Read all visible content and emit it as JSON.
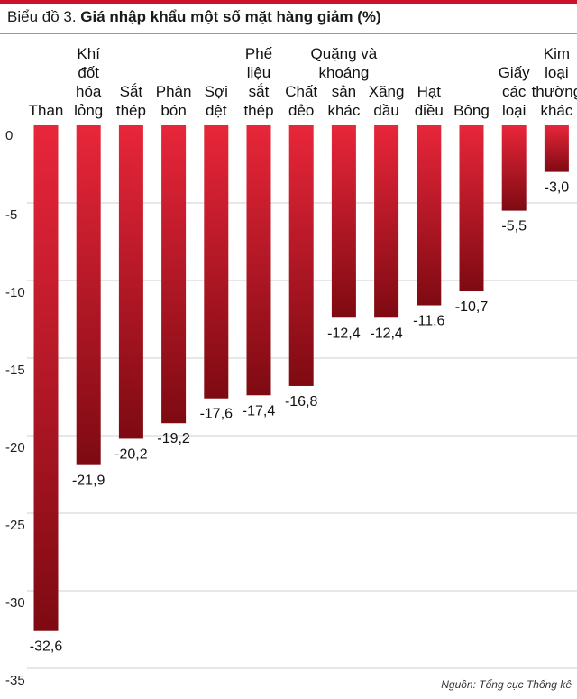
{
  "title": {
    "prefix": "Biểu đồ 3. ",
    "main": "Giá nhập khẩu một số mặt hàng giảm (%)"
  },
  "source": "Nguồn: Tổng cục Thống kê",
  "colors": {
    "accent": "#d0112b",
    "bar_top": "#e8263a",
    "bar_bottom": "#7e0a12",
    "grid": "#cfcfcf"
  },
  "chart_data": {
    "type": "bar",
    "title": "Giá nhập khẩu một số mặt hàng giảm (%)",
    "categories": [
      [
        "Than"
      ],
      [
        "Khí",
        "đốt",
        "hóa",
        "lỏng"
      ],
      [
        "Sắt",
        "thép"
      ],
      [
        "Phân",
        "bón"
      ],
      [
        "Sợi",
        "dệt"
      ],
      [
        "Phế",
        "liệu",
        "sắt",
        "thép"
      ],
      [
        "Chất",
        "dẻo"
      ],
      [
        "Quặng và",
        "khoáng",
        "sản",
        "khác"
      ],
      [
        "Xăng",
        "dầu"
      ],
      [
        "Hạt",
        "điều"
      ],
      [
        "Bông"
      ],
      [
        "Giấy",
        "các",
        "loại"
      ],
      [
        "Kim",
        "loại",
        "thường",
        "khác"
      ]
    ],
    "values": [
      -32.6,
      -21.9,
      -20.2,
      -19.2,
      -17.6,
      -17.4,
      -16.8,
      -12.4,
      -12.4,
      -11.6,
      -10.7,
      -5.5,
      -3.0
    ],
    "value_labels": [
      "-32,6",
      "-21,9",
      "-20,2",
      "-19,2",
      "-17,6",
      "-17,4",
      "-16,8",
      "-12,4",
      "-12,4",
      "-11,6",
      "-10,7",
      "-5,5",
      "-3,0"
    ],
    "y_ticks": [
      0,
      -5,
      -10,
      -15,
      -20,
      -25,
      -30,
      -35
    ],
    "y_tick_labels": [
      "0",
      "-5",
      "-10",
      "-15",
      "-20",
      "-25",
      "-30",
      "-35"
    ],
    "ylim": [
      -35,
      0
    ],
    "grid": true
  }
}
